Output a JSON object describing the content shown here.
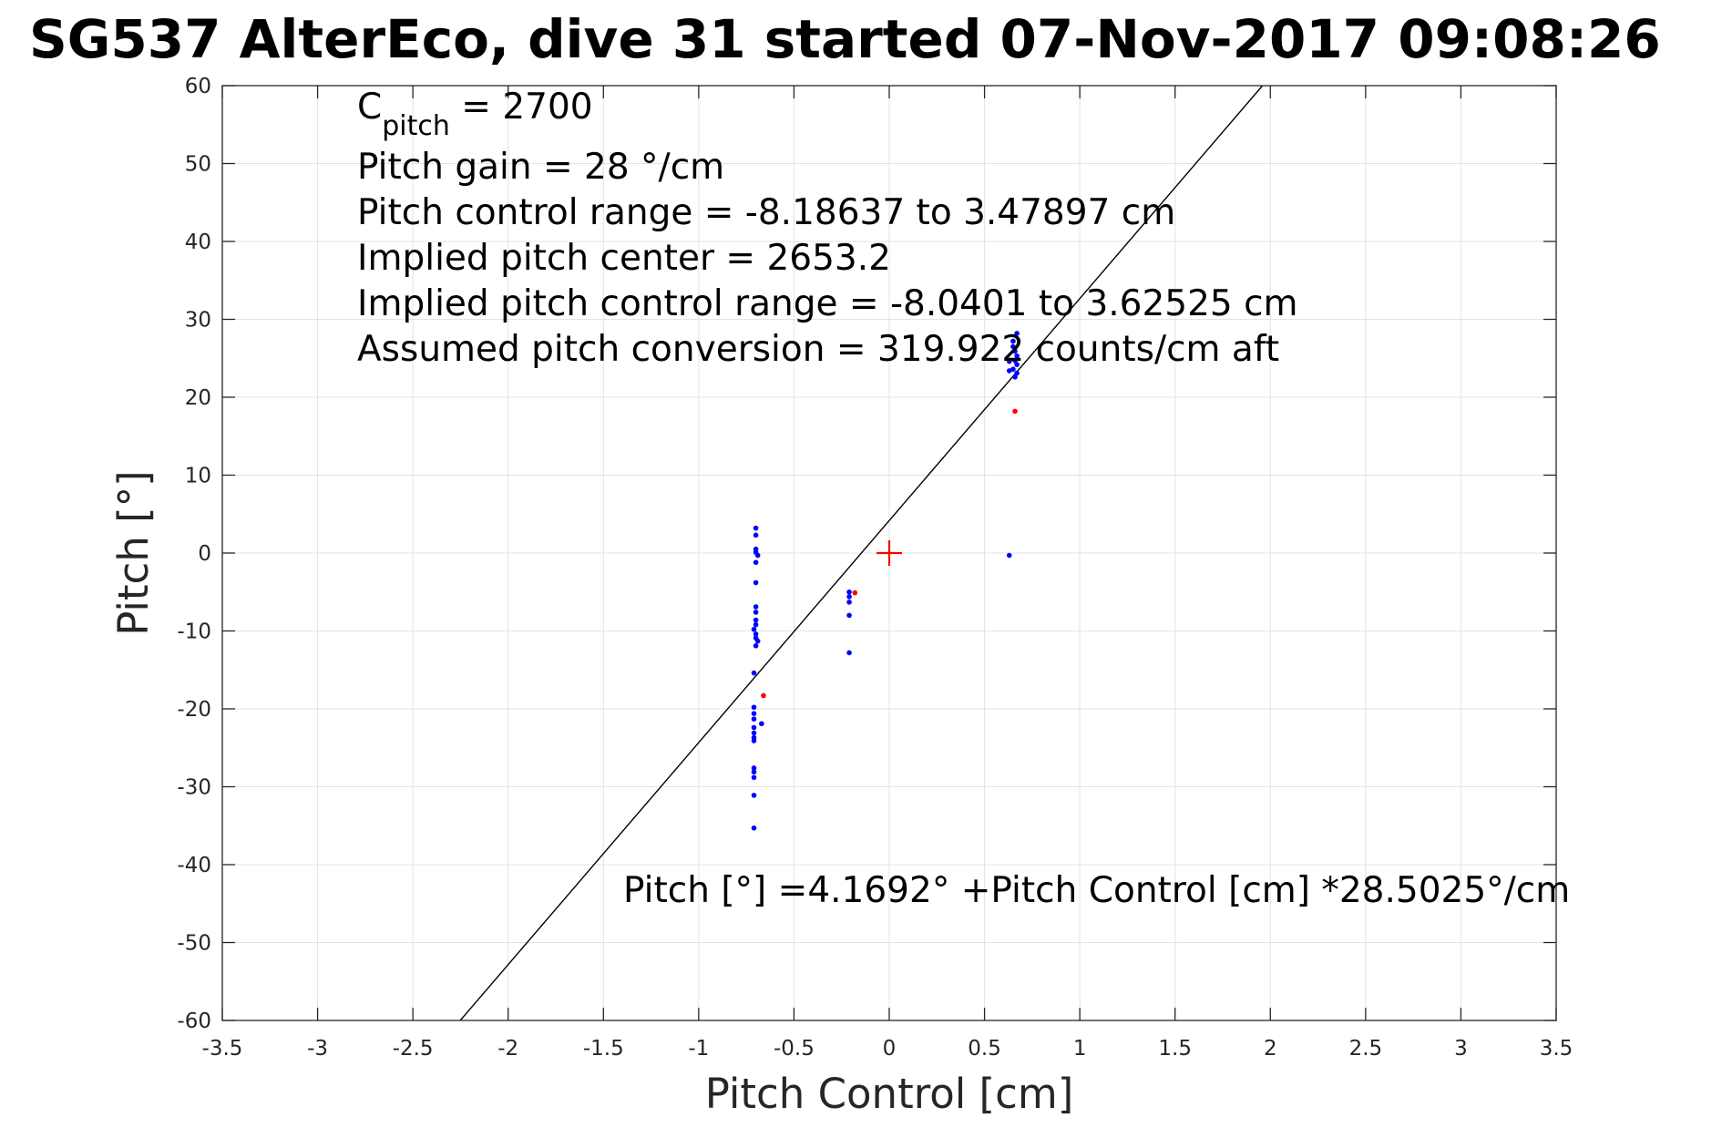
{
  "chart_data": {
    "type": "scatter",
    "title": "SG537 AlterEco, dive 31 started 07-Nov-2017 09:08:26",
    "xlabel": "Pitch Control [cm]",
    "ylabel": "Pitch [°]",
    "xlim": [
      -3.5,
      3.5
    ],
    "ylim": [
      -60,
      60
    ],
    "xticks": [
      -3.5,
      -3,
      -2.5,
      -2,
      -1.5,
      -1,
      -0.5,
      0,
      0.5,
      1,
      1.5,
      2,
      2.5,
      3,
      3.5
    ],
    "yticks": [
      -60,
      -50,
      -40,
      -30,
      -20,
      -10,
      0,
      10,
      20,
      30,
      40,
      50,
      60
    ],
    "grid": true,
    "annotations": {
      "c_pitch_symbol": "C",
      "c_pitch_sub": "pitch",
      "c_pitch_value": " = 2700",
      "lines": [
        "Pitch gain = 28 °/cm",
        "Pitch control range = -8.18637 to 3.47897 cm",
        "Implied pitch center = 2653.2",
        "Implied pitch control range = -8.0401 to 3.62525 cm",
        "Assumed pitch conversion = 319.922 counts/cm aft"
      ],
      "fit_equation": "Pitch [°] =4.1692° +Pitch Control [cm] *28.5025°/cm"
    },
    "fit_line": {
      "intercept": 4.1692,
      "slope": 28.5025,
      "color": "#000000"
    },
    "center_marker": {
      "x": 0,
      "y": 0,
      "color": "#ff0000",
      "shape": "plus"
    },
    "series": [
      {
        "color": "#0000ff",
        "points": [
          [
            -0.7,
            3.2
          ],
          [
            -0.7,
            2.3
          ],
          [
            -0.7,
            0.5
          ],
          [
            -0.7,
            0.1
          ],
          [
            -0.69,
            -0.3
          ],
          [
            -0.7,
            -1.2
          ],
          [
            -0.7,
            -3.8
          ],
          [
            -0.7,
            -6.9
          ],
          [
            -0.7,
            -7.6
          ],
          [
            -0.7,
            -8.6
          ],
          [
            -0.7,
            -9.2
          ],
          [
            -0.71,
            -9.8
          ],
          [
            -0.7,
            -10.4
          ],
          [
            -0.7,
            -10.9
          ],
          [
            -0.69,
            -11.3
          ],
          [
            -0.7,
            -11.9
          ],
          [
            -0.71,
            -15.4
          ],
          [
            -0.71,
            -19.8
          ],
          [
            -0.71,
            -20.6
          ],
          [
            -0.71,
            -21.3
          ],
          [
            -0.71,
            -22.4
          ],
          [
            -0.71,
            -23.1
          ],
          [
            -0.71,
            -23.7
          ],
          [
            -0.71,
            -24.1
          ],
          [
            -0.67,
            -21.9
          ],
          [
            -0.71,
            -27.6
          ],
          [
            -0.71,
            -28.1
          ],
          [
            -0.71,
            -28.8
          ],
          [
            -0.71,
            -31.1
          ],
          [
            -0.71,
            -35.3
          ],
          [
            -0.21,
            -5.0
          ],
          [
            -0.21,
            -5.6
          ],
          [
            -0.21,
            -6.3
          ],
          [
            -0.21,
            -8.0
          ],
          [
            -0.21,
            -12.8
          ],
          [
            0.67,
            28.2
          ],
          [
            0.65,
            27.2
          ],
          [
            0.65,
            26.5
          ],
          [
            0.66,
            25.9
          ],
          [
            0.67,
            25.3
          ],
          [
            0.66,
            24.7
          ],
          [
            0.67,
            24.2
          ],
          [
            0.65,
            23.6
          ],
          [
            0.67,
            23.1
          ],
          [
            0.66,
            22.6
          ],
          [
            0.63,
            23.4
          ],
          [
            0.63,
            24.6
          ],
          [
            0.63,
            -0.3
          ]
        ]
      },
      {
        "color": "#ff0000",
        "points": [
          [
            -0.66,
            -18.3
          ],
          [
            -0.18,
            -5.1
          ],
          [
            0.66,
            18.2
          ]
        ]
      }
    ]
  }
}
